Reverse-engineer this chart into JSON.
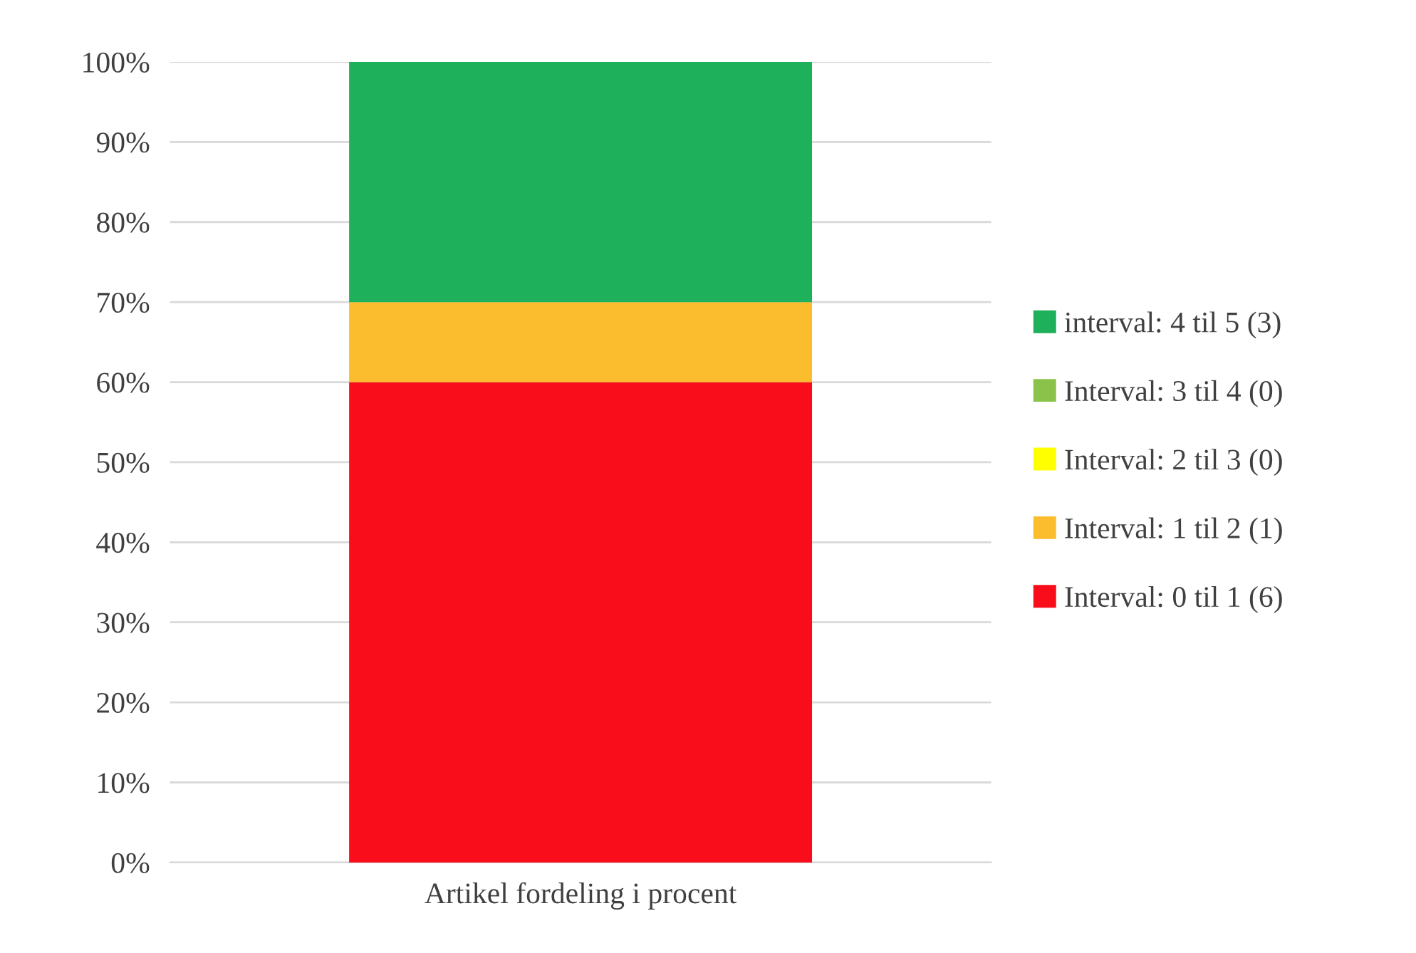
{
  "chart_data": {
    "type": "bar",
    "stacked": true,
    "categories": [
      "Artikel fordeling i procent"
    ],
    "series": [
      {
        "name": "Interval: 0 til 1 (6)",
        "color": "#f90d1b",
        "values": [
          60
        ]
      },
      {
        "name": "Interval: 1 til 2 (1)",
        "color": "#fbbc2d",
        "values": [
          10
        ]
      },
      {
        "name": "Interval: 2 til 3 (0)",
        "color": "#ffff00",
        "values": [
          0
        ]
      },
      {
        "name": "Interval: 3 til 4 (0)",
        "color": "#8bc34a",
        "values": [
          0
        ]
      },
      {
        "name": "interval: 4 til 5 (3)",
        "color": "#1eb05a",
        "values": [
          30
        ]
      }
    ],
    "ylim": [
      0,
      100
    ],
    "yticks": [
      {
        "value": 0,
        "label": "0%"
      },
      {
        "value": 10,
        "label": "10%"
      },
      {
        "value": 20,
        "label": "20%"
      },
      {
        "value": 30,
        "label": "30%"
      },
      {
        "value": 40,
        "label": "40%"
      },
      {
        "value": 50,
        "label": "50%"
      },
      {
        "value": 60,
        "label": "60%"
      },
      {
        "value": 70,
        "label": "70%"
      },
      {
        "value": 80,
        "label": "80%"
      },
      {
        "value": 90,
        "label": "90%"
      },
      {
        "value": 100,
        "label": "100%"
      }
    ],
    "grid": "y",
    "legend": "right"
  }
}
